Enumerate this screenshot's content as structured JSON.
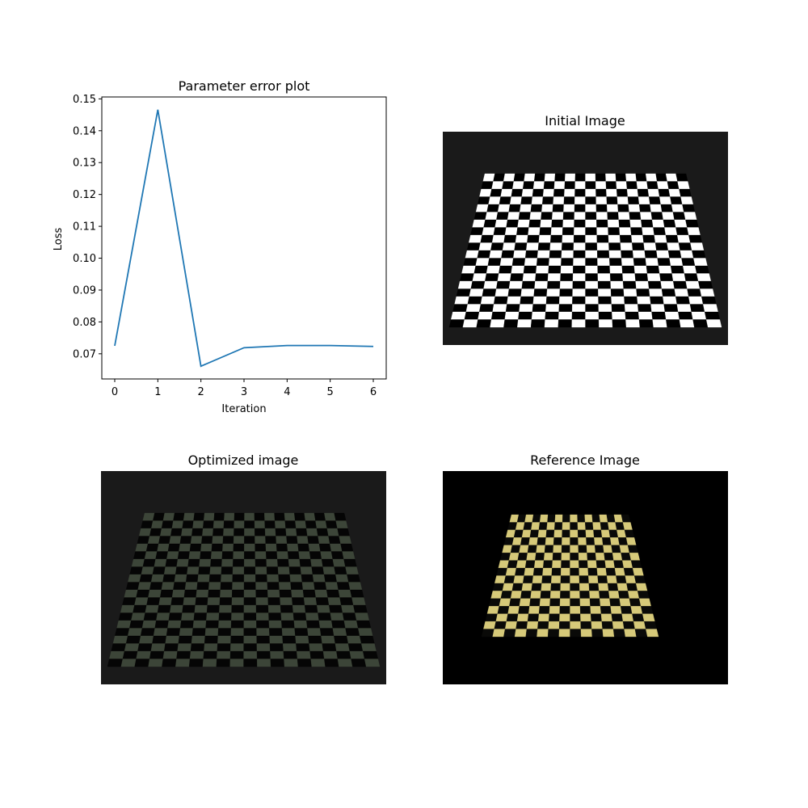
{
  "chart_data": [
    {
      "type": "line",
      "title": "Parameter error plot",
      "xlabel": "Iteration",
      "ylabel": "Loss",
      "x": [
        0,
        1,
        2,
        3,
        4,
        5,
        6
      ],
      "series": [
        {
          "values": [
            0.0725,
            0.1466,
            0.0661,
            0.0719,
            0.0726,
            0.0726,
            0.0723
          ],
          "color": "#1f77b4"
        }
      ],
      "xlim": [
        -0.3,
        6.3
      ],
      "ylim": [
        0.0621,
        0.1506
      ],
      "xticks": [
        "0",
        "1",
        "2",
        "3",
        "4",
        "5",
        "6"
      ],
      "yticks": [
        "0.07",
        "0.08",
        "0.09",
        "0.10",
        "0.11",
        "0.12",
        "0.13",
        "0.14",
        "0.15"
      ],
      "grid": false
    }
  ],
  "images": {
    "initial": {
      "title": "Initial Image",
      "background": "#1a1a1a",
      "light_color": "#ffffff",
      "dark_color": "#000000"
    },
    "optimized": {
      "title": "Optimized image",
      "background": "#1a1a1a",
      "light_color": "#3c4538",
      "dark_color": "#050505"
    },
    "reference": {
      "title": "Reference Image",
      "background": "#000000",
      "light_color": "#d6c979",
      "dark_color": "#0a0a08"
    }
  }
}
